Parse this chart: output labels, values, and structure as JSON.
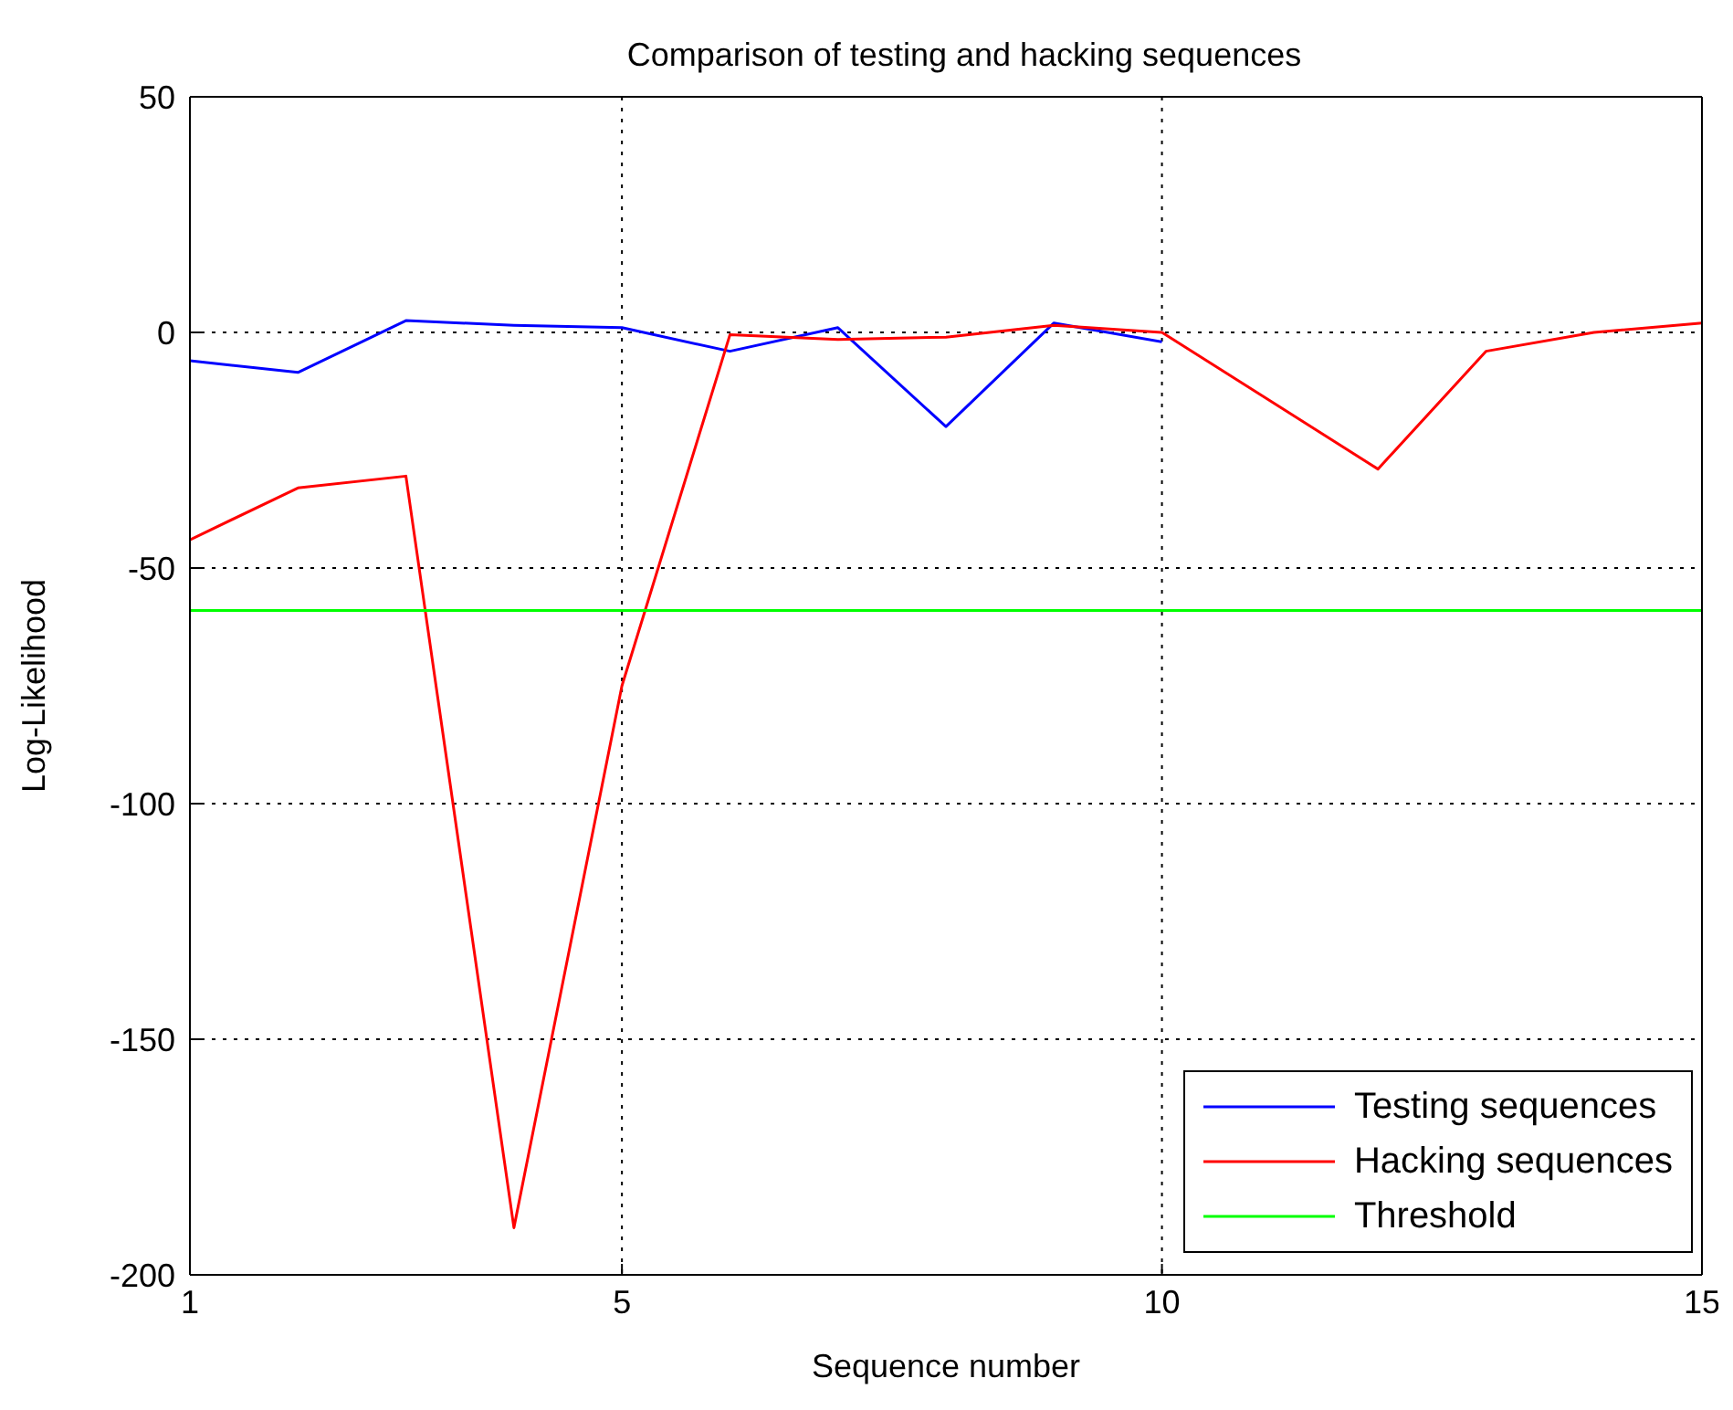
{
  "chart_data": {
    "type": "line",
    "title": "Comparison of testing and hacking sequences",
    "xlabel": "Sequence number",
    "ylabel": "Log-Likelihood",
    "xlim": [
      1,
      15
    ],
    "xticks": [
      1,
      5,
      10,
      15
    ],
    "ylim": [
      -200,
      50
    ],
    "yticks": [
      -200,
      -150,
      -100,
      -50,
      0,
      50
    ],
    "grid": true,
    "legend": "bottom right",
    "marker": "none",
    "line_style": "solid",
    "series": [
      {
        "name": "Testing sequences",
        "color": "#0000ff",
        "x": [
          1,
          2,
          3,
          4,
          5,
          6,
          7,
          8,
          9,
          10
        ],
        "values": [
          -6,
          -8.5,
          2.5,
          1.5,
          1,
          -4,
          1,
          -20,
          2,
          -2
        ]
      },
      {
        "name": "Hacking sequences",
        "color": "#ff0000",
        "x": [
          1,
          2,
          3,
          4,
          5,
          6,
          7,
          8,
          9,
          10,
          11,
          12,
          13,
          14,
          15
        ],
        "values": [
          -44,
          -33,
          -30.5,
          -190,
          -75,
          -0.5,
          -1.5,
          -1,
          1.5,
          0,
          -14.5,
          -29,
          -4,
          0,
          2
        ]
      },
      {
        "name": "Threshold",
        "color": "#00ff00",
        "x": [
          1,
          15
        ],
        "values": [
          -59,
          -59
        ]
      }
    ]
  }
}
